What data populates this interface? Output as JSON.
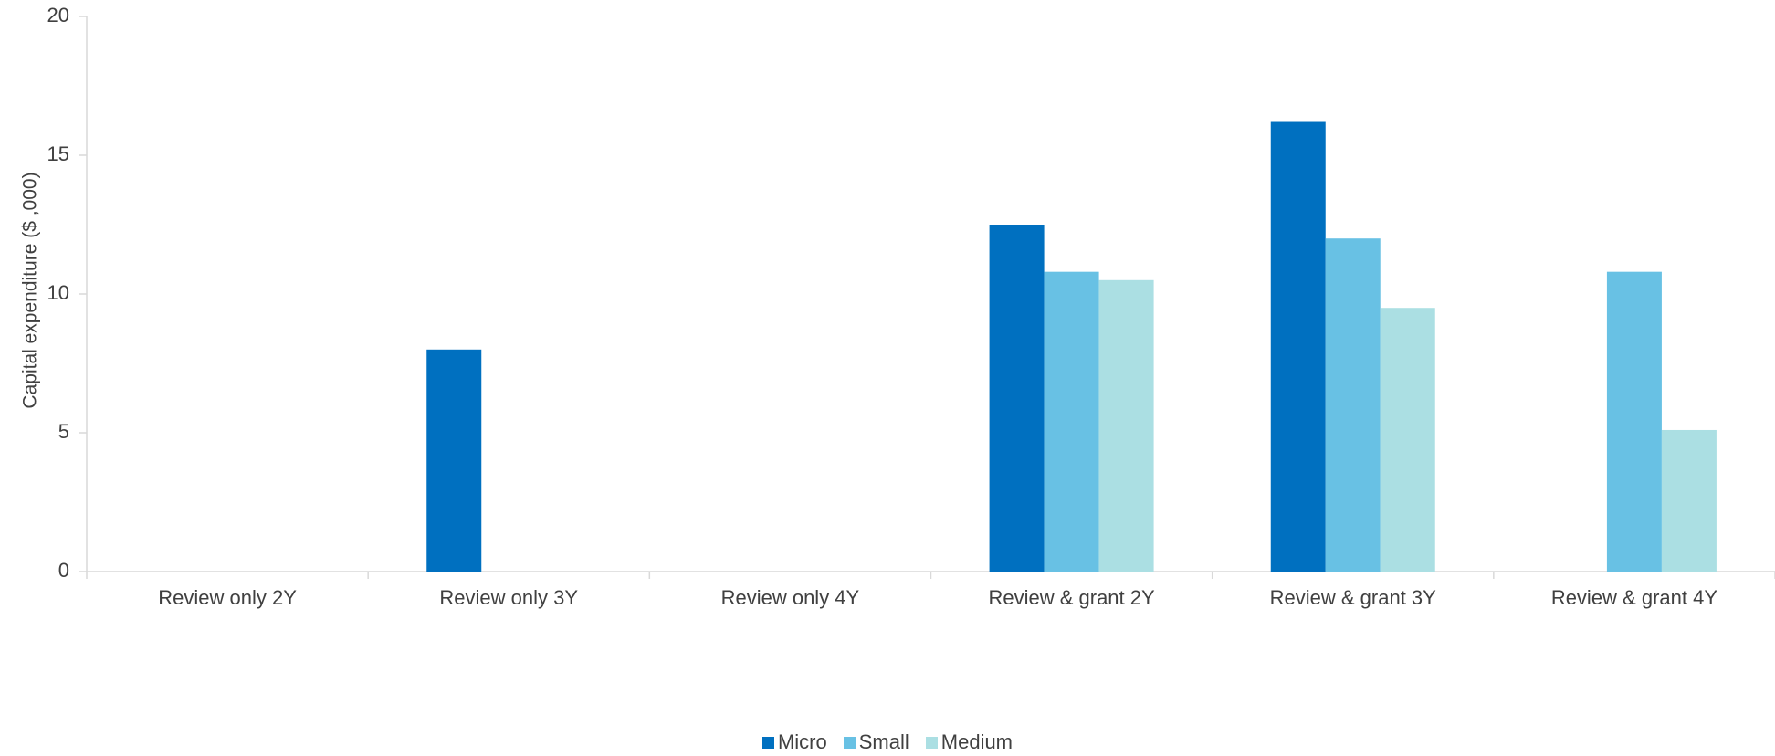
{
  "chart_data": {
    "type": "bar",
    "title": "",
    "xlabel": "",
    "ylabel": "Capital expenditure ($ ,000)",
    "ylim": [
      0,
      20
    ],
    "yticks": [
      0,
      5,
      10,
      15,
      20
    ],
    "grid": false,
    "legend_position": "bottom-center",
    "categories": [
      "Review only 2Y",
      "Review only 3Y",
      "Review only 4Y",
      "Review & grant 2Y",
      "Review & grant 3Y",
      "Review & grant 4Y"
    ],
    "series": [
      {
        "name": "Micro",
        "color": "#0070c0",
        "values": [
          null,
          8.0,
          null,
          12.5,
          16.2,
          null
        ]
      },
      {
        "name": "Small",
        "color": "#68c1e4",
        "values": [
          null,
          null,
          null,
          10.8,
          12.0,
          10.8
        ]
      },
      {
        "name": "Medium",
        "color": "#abdfe3",
        "values": [
          null,
          null,
          null,
          10.5,
          9.5,
          5.1
        ]
      }
    ]
  }
}
